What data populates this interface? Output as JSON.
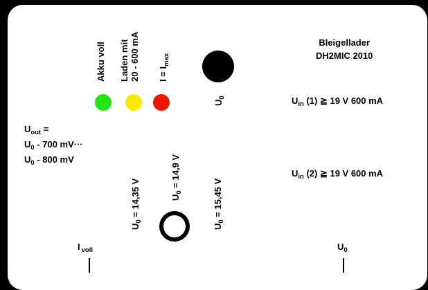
{
  "title": {
    "line1": "Bleigellader",
    "line2": "DH2MIC  2010"
  },
  "leds": [
    {
      "label_line1": "Akku voll",
      "label_line2": "",
      "color": "#22e614"
    },
    {
      "label_line1": "Laden mit",
      "label_line2": "20 - 600 mA",
      "color": "#f8ea00"
    },
    {
      "label_line1": "I = I",
      "label_sub": "max",
      "label_line2": "",
      "color": "#f01400"
    }
  ],
  "socket_top": {
    "label_main": "U",
    "label_sub": "0"
  },
  "inputs": [
    {
      "main": "U",
      "sub": "in",
      "rest": " (1) ≧ 19 V 600 mA"
    },
    {
      "main": "U",
      "sub": "in",
      "rest": " (2) ≧ 19 V 600 mA"
    }
  ],
  "output_note": {
    "line1_main": "U",
    "line1_sub": "out",
    "line1_rest": " =",
    "line2_main": "U",
    "line2_sub": "0",
    "line2_rest": " - 700 mV···",
    "line3_main": "U",
    "line3_sub": "0",
    "line3_rest": " - 800 mV"
  },
  "voltages": [
    {
      "main": "U",
      "sub": "0",
      "rest": " = 14,35 V"
    },
    {
      "main": "U",
      "sub": "0",
      "rest": " = 14,9 V"
    },
    {
      "main": "U",
      "sub": "0",
      "rest": " = 15,45 V"
    }
  ],
  "bottom_left": {
    "main": "I",
    "sub": "voll"
  },
  "bottom_right": {
    "main": "U",
    "sub": "0"
  },
  "colors": {
    "panel": "#ffffff",
    "background": "#000000"
  }
}
